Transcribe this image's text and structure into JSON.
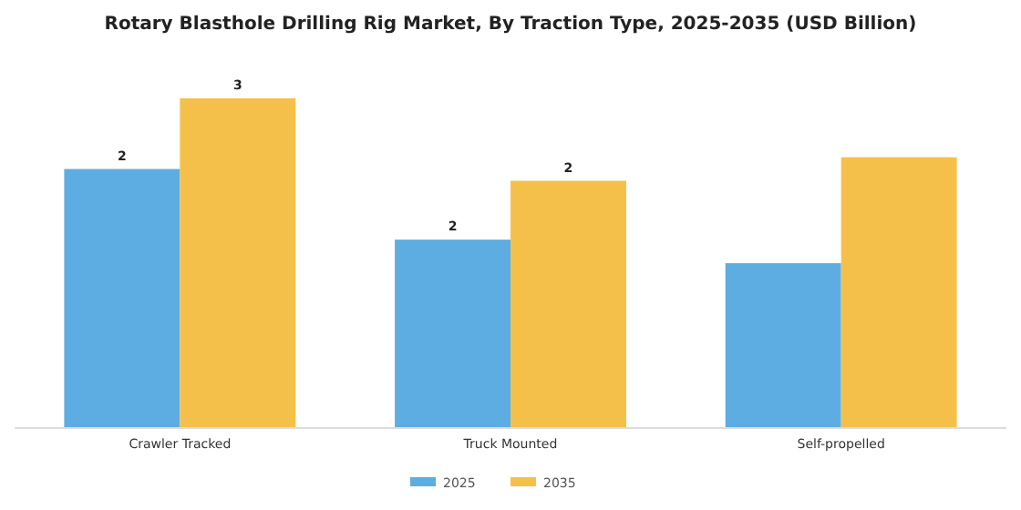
{
  "chart_data": {
    "type": "bar",
    "title": "Rotary Blasthole Drilling Rig Market, By Traction Type, 2025-2035 (USD Billion)",
    "categories": [
      "Crawler Tracked",
      "Truck Mounted",
      "Self-propelled"
    ],
    "legend": "bottom",
    "series": [
      {
        "name": "2025",
        "color": "#5dade2",
        "values": [
          2.2,
          1.6,
          1.4
        ],
        "value_labels": [
          "2",
          "2",
          null
        ]
      },
      {
        "name": "2035",
        "color": "#f5c04a",
        "values": [
          2.8,
          2.1,
          2.3
        ],
        "value_labels": [
          "3",
          "2",
          null
        ]
      }
    ]
  }
}
